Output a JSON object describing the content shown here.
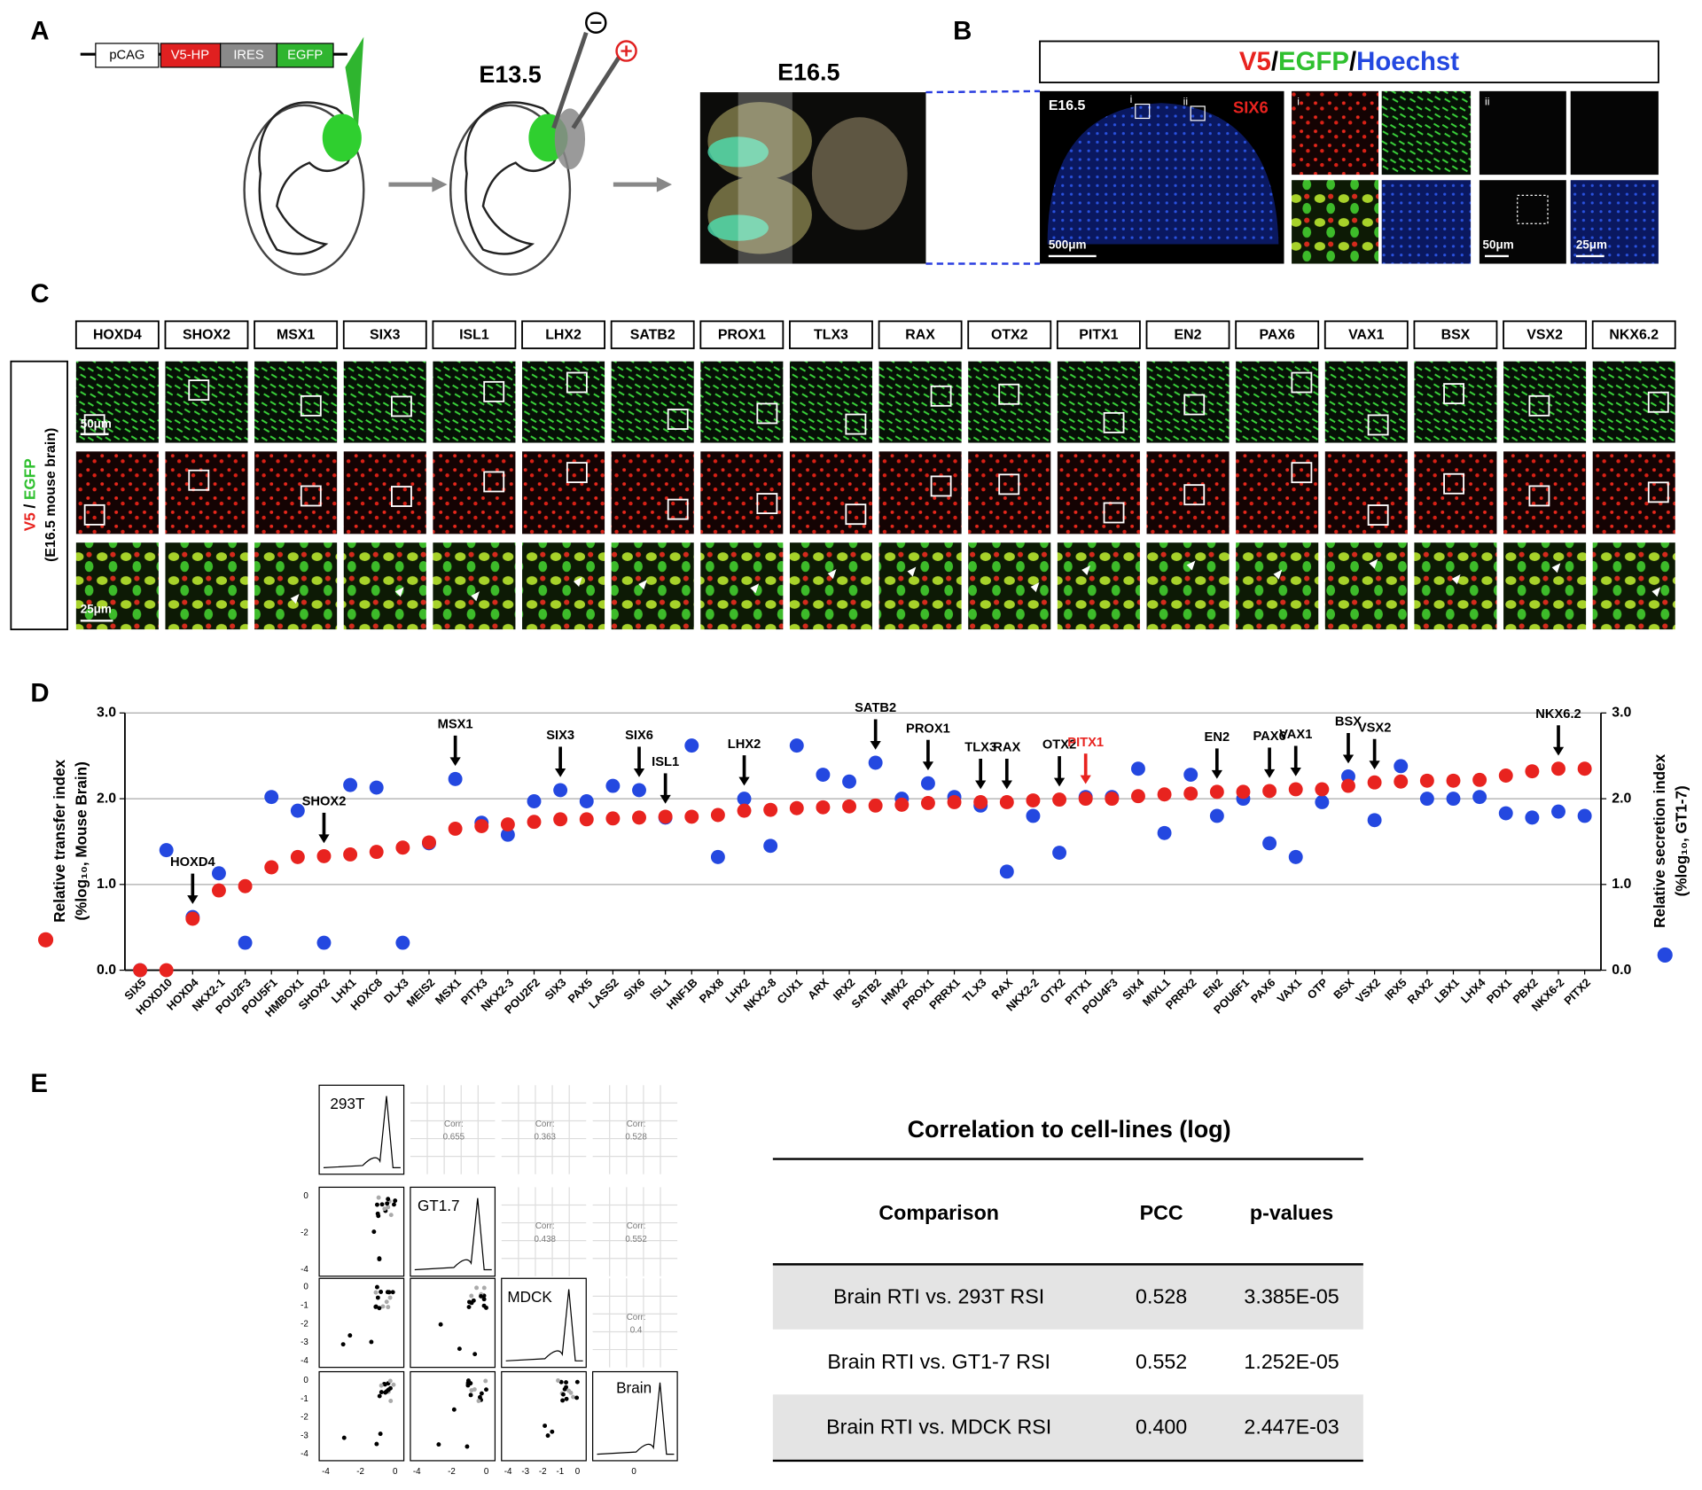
{
  "panel_labels": [
    "A",
    "B",
    "C",
    "D",
    "E"
  ],
  "panel_a": {
    "construct": [
      "pCAG",
      "V5-HP",
      "IRES",
      "EGFP"
    ],
    "stages": [
      "E13.5",
      "E16.5"
    ]
  },
  "panel_b": {
    "title_parts": [
      "V5",
      "/",
      "EGFP",
      "/",
      "Hoechst"
    ],
    "stage": "E16.5",
    "regions": [
      "i",
      "ii"
    ],
    "marker": "SIX6",
    "scales": [
      "500μm",
      "50μm",
      "25μm"
    ]
  },
  "panel_c": {
    "genes": [
      "HOXD4",
      "SHOX2",
      "MSX1",
      "SIX3",
      "ISL1",
      "LHX2",
      "SATB2",
      "PROX1",
      "TLX3",
      "RAX",
      "OTX2",
      "PITX1",
      "EN2",
      "PAX6",
      "VAX1",
      "BSX",
      "VSX2",
      "NKX6.2"
    ],
    "row_label_parts": [
      "V5",
      " / ",
      "EGFP"
    ],
    "row_label_sub": "(E16.5 mouse brain)",
    "scales": [
      "50μm",
      "25μm"
    ]
  },
  "chart_data": {
    "type": "scatter",
    "categories": [
      "SIX5",
      "HOXD10",
      "HOXD4",
      "NKX2-1",
      "POU2F3",
      "POU5F1",
      "HMBOX1",
      "SHOX2",
      "LHX1",
      "HOXC8",
      "DLX3",
      "MEIS2",
      "MSX1",
      "PITX3",
      "NKX2-3",
      "POU2F2",
      "SIX3",
      "PAX5",
      "LASS2",
      "SIX6",
      "ISL1",
      "HNF1B",
      "PAX8",
      "LHX2",
      "NKX2-8",
      "CUX1",
      "ARX",
      "IRX2",
      "SATB2",
      "HMX2",
      "PROX1",
      "PRRX1",
      "TLX3",
      "RAX",
      "NKX2-2",
      "OTX2",
      "PITX1",
      "POU4F3",
      "SIX4",
      "MIXL1",
      "PRRX2",
      "EN2",
      "POU6F1",
      "PAX6",
      "VAX1",
      "OTP",
      "BSX",
      "VSX2",
      "IRX5",
      "RAX2",
      "LBX1",
      "LHX4",
      "PDX1",
      "PBX2",
      "NKX6-2",
      "PITX2"
    ],
    "series": [
      {
        "color": "#e8231f",
        "values": [
          0,
          0,
          0.6,
          0.93,
          0.98,
          1.2,
          1.32,
          1.33,
          1.35,
          1.38,
          1.43,
          1.49,
          1.65,
          1.68,
          1.7,
          1.73,
          1.76,
          1.76,
          1.77,
          1.78,
          1.79,
          1.79,
          1.81,
          1.86,
          1.87,
          1.89,
          1.9,
          1.91,
          1.92,
          1.93,
          1.95,
          1.96,
          1.96,
          1.96,
          1.98,
          1.99,
          2.0,
          2.0,
          2.03,
          2.05,
          2.06,
          2.08,
          2.08,
          2.09,
          2.11,
          2.11,
          2.15,
          2.19,
          2.2,
          2.21,
          2.21,
          2.22,
          2.27,
          2.32,
          2.35,
          2.35
        ]
      },
      {
        "color": "#2448e0",
        "axis": "y2",
        "values": [
          0,
          1.4,
          0.62,
          1.13,
          0.32,
          2.02,
          1.86,
          0.32,
          2.16,
          2.13,
          0.32,
          1.48,
          2.23,
          1.72,
          1.58,
          1.97,
          2.1,
          1.97,
          2.15,
          2.1,
          1.78,
          2.62,
          1.32,
          2.0,
          1.45,
          2.62,
          2.28,
          2.2,
          2.42,
          2.0,
          2.18,
          2.02,
          1.92,
          1.15,
          1.8,
          1.37,
          2.02,
          2.02,
          2.35,
          1.6,
          2.28,
          1.8,
          2.0,
          1.48,
          1.32,
          1.96,
          2.26,
          1.75,
          2.38,
          2.0,
          2.0,
          2.02,
          1.83,
          1.78,
          1.85,
          1.8
        ]
      }
    ],
    "ylabel": [
      "Relative transfer index",
      "(%log₁₀, Mouse Brain)"
    ],
    "y2label": [
      "Relative secretion index",
      "(%log₁₀, GT1-7)"
    ],
    "ylim": [
      0,
      3
    ],
    "yticks": [
      {
        "value": 0,
        "label": "0.0"
      },
      {
        "value": 1,
        "label": "1.0"
      },
      {
        "value": 2,
        "label": "2.0"
      },
      {
        "value": 3,
        "label": "3.0"
      }
    ],
    "y2lim": [
      0,
      3
    ],
    "y2ticks": [
      {
        "value": 0,
        "label": "0.0"
      },
      {
        "value": 1,
        "label": "1.0"
      },
      {
        "value": 2,
        "label": "2.0"
      },
      {
        "value": 3,
        "label": "3.0"
      }
    ],
    "grid": true,
    "annotations": [
      {
        "text": "HOXD4",
        "category": "HOXD4",
        "color": "#000000"
      },
      {
        "text": "SHOX2",
        "category": "SHOX2",
        "color": "#000000"
      },
      {
        "text": "MSX1",
        "category": "MSX1",
        "color": "#000000"
      },
      {
        "text": "SIX3",
        "category": "SIX3",
        "color": "#000000"
      },
      {
        "text": "SIX6",
        "category": "SIX6",
        "color": "#000000"
      },
      {
        "text": "ISL1",
        "category": "ISL1",
        "color": "#000000"
      },
      {
        "text": "LHX2",
        "category": "LHX2",
        "color": "#000000"
      },
      {
        "text": "SATB2",
        "category": "SATB2",
        "color": "#000000"
      },
      {
        "text": "PROX1",
        "category": "PROX1",
        "color": "#000000"
      },
      {
        "text": "TLX3",
        "category": "TLX3",
        "color": "#000000"
      },
      {
        "text": "RAX",
        "category": "RAX",
        "color": "#000000"
      },
      {
        "text": "OTX2",
        "category": "OTX2",
        "color": "#000000"
      },
      {
        "text": "PITX1",
        "category": "PITX1",
        "color": "#e8231f"
      },
      {
        "text": "EN2",
        "category": "EN2",
        "color": "#000000"
      },
      {
        "text": "PAX6",
        "category": "PAX6",
        "color": "#000000"
      },
      {
        "text": "VAX1",
        "category": "VAX1",
        "color": "#000000"
      },
      {
        "text": "BSX",
        "category": "BSX",
        "color": "#000000"
      },
      {
        "text": "VSX2",
        "category": "VSX2",
        "color": "#000000"
      },
      {
        "text": "NKX6.2",
        "category": "NKX6-2",
        "color": "#000000"
      }
    ]
  },
  "panel_e": {
    "matrix": {
      "names": [
        "293T",
        "GT1.7",
        "MDCK",
        "Brain"
      ],
      "corr_label": "Corr:",
      "corr": [
        "0.655",
        "0.363",
        "0.528",
        "0.438",
        "0.552",
        "0.4"
      ],
      "row_ticks": [
        [
          "0",
          "-2",
          "-4"
        ],
        [
          "0",
          "-1",
          "-2",
          "-3",
          "-4"
        ],
        [
          "0",
          "-1",
          "-2",
          "-3",
          "-4"
        ]
      ],
      "col_ticks": [
        [
          "-4",
          "-2",
          "0"
        ],
        [
          "-4",
          "-2",
          "0"
        ],
        [
          "-4",
          "-3",
          "-2",
          "-1",
          "0"
        ],
        [
          "0"
        ]
      ]
    },
    "table": {
      "title": "Correlation to cell-lines  (log)",
      "header": [
        "Comparison",
        "PCC",
        "p-values"
      ],
      "rows": [
        [
          "Brain RTI vs. 293T RSI",
          "0.528",
          "3.385E-05"
        ],
        [
          "Brain RTI vs. GT1-7 RSI",
          "0.552",
          "1.252E-05"
        ],
        [
          "Brain RTI vs. MDCK RSI",
          "0.400",
          "2.447E-03"
        ]
      ]
    }
  }
}
